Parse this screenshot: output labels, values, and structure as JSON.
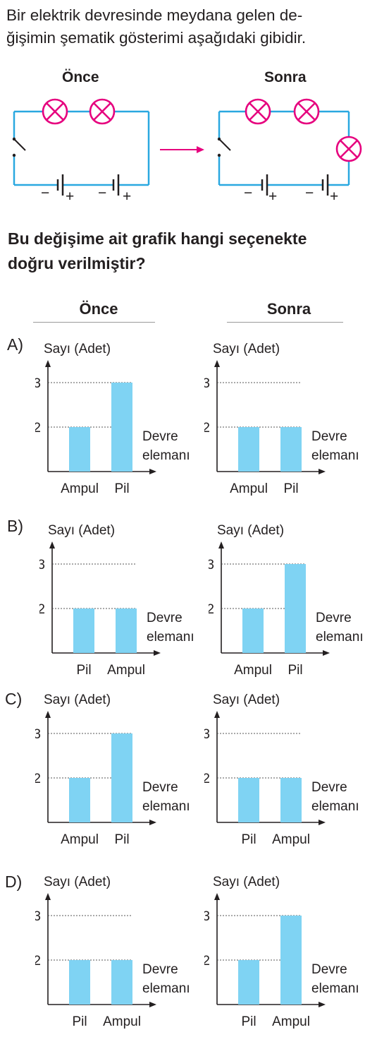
{
  "intro": {
    "line1": "Bir elektrik devresinde meydana gelen de-",
    "line2": "ğişimin şematik gösterimi aşağıdaki gibidir."
  },
  "circuits": {
    "before_label": "Önce",
    "after_label": "Sonra",
    "before": {
      "bulbs": 2,
      "cells": 2
    },
    "after": {
      "bulbs": 3,
      "cells": 2
    },
    "minus": "−",
    "plus": "+"
  },
  "question": {
    "line1": "Bu değişime ait grafik hangi seçenekte",
    "line2": "doğru verilmiştir?"
  },
  "columns": {
    "before": "Önce",
    "after": "Sonra"
  },
  "colors": {
    "bar": "#7fd3f3",
    "wire": "#2aa8e0",
    "bulb": "#e6007e",
    "arrow": "#e6007e"
  },
  "options": [
    {
      "letter": "A)",
      "charts": [
        {
          "type": "bar",
          "ylabel": "Sayı (Adet)",
          "xlabel": [
            "Devre",
            "elemanı"
          ],
          "yticks": [
            2,
            3
          ],
          "categories": [
            "Ampul",
            "Pil"
          ],
          "values": [
            2,
            3
          ]
        },
        {
          "type": "bar",
          "ylabel": "Sayı (Adet)",
          "xlabel": [
            "Devre",
            "elemanı"
          ],
          "yticks": [
            2,
            3
          ],
          "categories": [
            "Ampul",
            "Pil"
          ],
          "values": [
            2,
            2
          ]
        }
      ]
    },
    {
      "letter": "B)",
      "charts": [
        {
          "type": "bar",
          "ylabel": "Sayı (Adet)",
          "xlabel": [
            "Devre",
            "elemanı"
          ],
          "yticks": [
            2,
            3
          ],
          "categories": [
            "Pil",
            "Ampul"
          ],
          "values": [
            2,
            2
          ]
        },
        {
          "type": "bar",
          "ylabel": "Sayı (Adet)",
          "xlabel": [
            "Devre",
            "elemanı"
          ],
          "yticks": [
            2,
            3
          ],
          "categories": [
            "Ampul",
            "Pil"
          ],
          "values": [
            2,
            3
          ]
        }
      ]
    },
    {
      "letter": "C)",
      "charts": [
        {
          "type": "bar",
          "ylabel": "Sayı (Adet)",
          "xlabel": [
            "Devre",
            "elemanı"
          ],
          "yticks": [
            2,
            3
          ],
          "categories": [
            "Ampul",
            "Pil"
          ],
          "values": [
            2,
            3
          ]
        },
        {
          "type": "bar",
          "ylabel": "Sayı (Adet)",
          "xlabel": [
            "Devre",
            "elemanı"
          ],
          "yticks": [
            2,
            3
          ],
          "categories": [
            "Pil",
            "Ampul"
          ],
          "values": [
            2,
            2
          ]
        }
      ]
    },
    {
      "letter": "D)",
      "charts": [
        {
          "type": "bar",
          "ylabel": "Sayı (Adet)",
          "xlabel": [
            "Devre",
            "elemanı"
          ],
          "yticks": [
            2,
            3
          ],
          "categories": [
            "Pil",
            "Ampul"
          ],
          "values": [
            2,
            2
          ]
        },
        {
          "type": "bar",
          "ylabel": "Sayı (Adet)",
          "xlabel": [
            "Devre",
            "elemanı"
          ],
          "yticks": [
            2,
            3
          ],
          "categories": [
            "Pil",
            "Ampul"
          ],
          "values": [
            2,
            3
          ]
        }
      ]
    }
  ],
  "chart_data": [
    {
      "type": "bar",
      "ylabel": "Sayı (Adet)",
      "xlabel": "Devre elemanı",
      "categories": [
        "Ampul",
        "Pil"
      ],
      "values": [
        2,
        3
      ]
    },
    {
      "type": "bar",
      "ylabel": "Sayı (Adet)",
      "xlabel": "Devre elemanı",
      "categories": [
        "Ampul",
        "Pil"
      ],
      "values": [
        2,
        2
      ]
    },
    {
      "type": "bar",
      "ylabel": "Sayı (Adet)",
      "xlabel": "Devre elemanı",
      "categories": [
        "Pil",
        "Ampul"
      ],
      "values": [
        2,
        2
      ]
    },
    {
      "type": "bar",
      "ylabel": "Sayı (Adet)",
      "xlabel": "Devre elemanı",
      "categories": [
        "Ampul",
        "Pil"
      ],
      "values": [
        2,
        3
      ]
    },
    {
      "type": "bar",
      "ylabel": "Sayı (Adet)",
      "xlabel": "Devre elemanı",
      "categories": [
        "Ampul",
        "Pil"
      ],
      "values": [
        2,
        3
      ]
    },
    {
      "type": "bar",
      "ylabel": "Sayı (Adet)",
      "xlabel": "Devre elemanı",
      "categories": [
        "Pil",
        "Ampul"
      ],
      "values": [
        2,
        2
      ]
    },
    {
      "type": "bar",
      "ylabel": "Sayı (Adet)",
      "xlabel": "Devre elemanı",
      "categories": [
        "Pil",
        "Ampul"
      ],
      "values": [
        2,
        2
      ]
    },
    {
      "type": "bar",
      "ylabel": "Sayı (Adet)",
      "xlabel": "Devre elemanı",
      "categories": [
        "Pil",
        "Ampul"
      ],
      "values": [
        2,
        3
      ]
    }
  ]
}
